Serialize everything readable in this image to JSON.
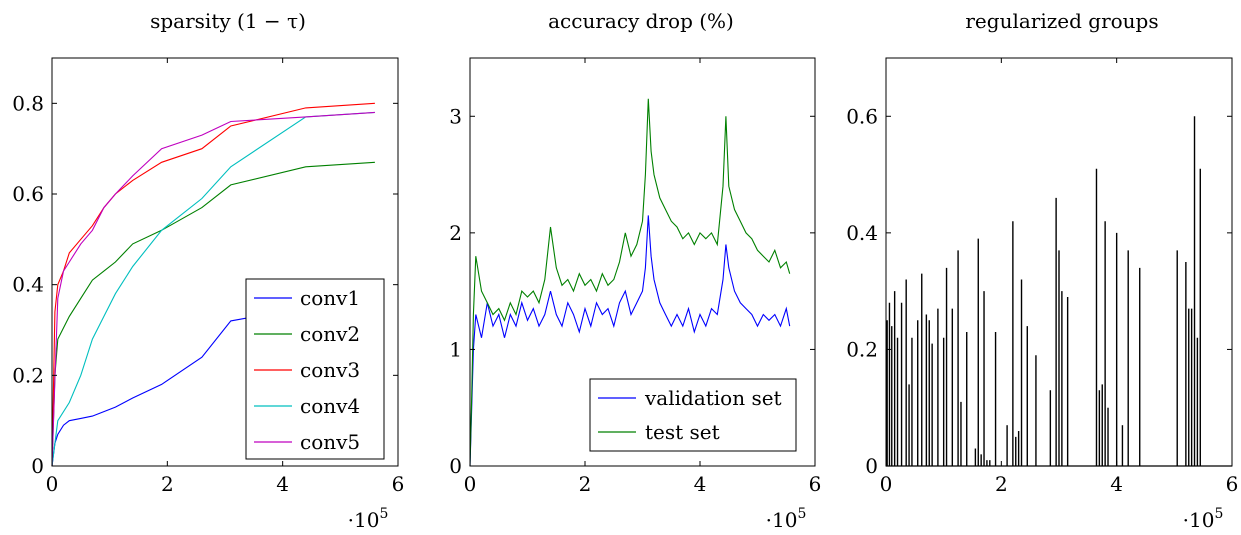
{
  "chart_data": [
    {
      "type": "line",
      "title": "sparsity (1 − τ)",
      "xlabel": "",
      "ylabel": "",
      "xlim": [
        0,
        6
      ],
      "ylim": [
        0,
        0.9
      ],
      "xticks": [
        "0",
        "2",
        "4",
        "6"
      ],
      "yticks": [
        "0",
        "0.2",
        "0.4",
        "0.6",
        "0.8"
      ],
      "x_multiplier": "·10",
      "x_multiplier_exp": "5",
      "legend_position": "bottom-right",
      "series": [
        {
          "name": "conv1",
          "color": "#0000ff",
          "x": [
            0,
            0.05,
            0.1,
            0.2,
            0.3,
            0.5,
            0.7,
            0.9,
            1.1,
            1.4,
            1.9,
            2.6,
            3.1,
            4.4,
            5.6
          ],
          "y": [
            0,
            0.05,
            0.07,
            0.09,
            0.1,
            0.105,
            0.11,
            0.12,
            0.13,
            0.15,
            0.18,
            0.24,
            0.32,
            0.35,
            0.38
          ]
        },
        {
          "name": "conv2",
          "color": "#008000",
          "x": [
            0,
            0.05,
            0.1,
            0.3,
            0.5,
            0.7,
            0.9,
            1.1,
            1.4,
            1.9,
            2.6,
            3.1,
            4.4,
            5.6
          ],
          "y": [
            0,
            0.2,
            0.28,
            0.33,
            0.37,
            0.41,
            0.43,
            0.45,
            0.49,
            0.52,
            0.57,
            0.62,
            0.66,
            0.67
          ]
        },
        {
          "name": "conv3",
          "color": "#ff0000",
          "x": [
            0,
            0.05,
            0.1,
            0.2,
            0.3,
            0.5,
            0.7,
            0.9,
            1.1,
            1.4,
            1.9,
            2.6,
            3.1,
            4.4,
            5.6
          ],
          "y": [
            0,
            0.34,
            0.4,
            0.43,
            0.47,
            0.5,
            0.53,
            0.57,
            0.6,
            0.63,
            0.67,
            0.7,
            0.75,
            0.79,
            0.8
          ]
        },
        {
          "name": "conv4",
          "color": "#00bfbf",
          "x": [
            0,
            0.05,
            0.1,
            0.3,
            0.5,
            0.7,
            0.9,
            1.1,
            1.4,
            1.9,
            2.6,
            3.1,
            4.4,
            5.6
          ],
          "y": [
            0,
            0.05,
            0.1,
            0.14,
            0.2,
            0.28,
            0.33,
            0.38,
            0.44,
            0.52,
            0.59,
            0.66,
            0.77,
            0.78
          ]
        },
        {
          "name": "conv5",
          "color": "#bf00bf",
          "x": [
            0,
            0.05,
            0.1,
            0.2,
            0.3,
            0.5,
            0.7,
            0.9,
            1.1,
            1.4,
            1.9,
            2.6,
            3.1,
            4.4,
            5.6
          ],
          "y": [
            0,
            0.19,
            0.37,
            0.43,
            0.45,
            0.49,
            0.52,
            0.57,
            0.6,
            0.64,
            0.7,
            0.73,
            0.76,
            0.77,
            0.78
          ]
        }
      ]
    },
    {
      "type": "line",
      "title": "accuracy drop (%)",
      "xlabel": "",
      "ylabel": "",
      "xlim": [
        0,
        6
      ],
      "ylim": [
        0,
        3.5
      ],
      "xticks": [
        "0",
        "2",
        "4",
        "6"
      ],
      "yticks": [
        "0",
        "1",
        "2",
        "3"
      ],
      "x_multiplier": "·10",
      "x_multiplier_exp": "5",
      "legend_position": "bottom-right",
      "series": [
        {
          "name": "validation set",
          "color": "#0000ff",
          "x": [
            0,
            0.03,
            0.06,
            0.1,
            0.2,
            0.3,
            0.4,
            0.5,
            0.6,
            0.7,
            0.8,
            0.9,
            1.0,
            1.1,
            1.2,
            1.3,
            1.4,
            1.5,
            1.6,
            1.7,
            1.8,
            1.9,
            2.0,
            2.1,
            2.2,
            2.3,
            2.4,
            2.5,
            2.6,
            2.7,
            2.8,
            2.9,
            3.0,
            3.05,
            3.1,
            3.15,
            3.2,
            3.3,
            3.4,
            3.5,
            3.6,
            3.7,
            3.8,
            3.9,
            4.0,
            4.1,
            4.2,
            4.3,
            4.4,
            4.45,
            4.5,
            4.6,
            4.7,
            4.8,
            4.9,
            5.0,
            5.1,
            5.2,
            5.3,
            5.4,
            5.5,
            5.56
          ],
          "y": [
            0,
            0.5,
            1.0,
            1.3,
            1.1,
            1.4,
            1.2,
            1.3,
            1.1,
            1.3,
            1.2,
            1.4,
            1.25,
            1.35,
            1.2,
            1.3,
            1.5,
            1.3,
            1.2,
            1.4,
            1.3,
            1.15,
            1.35,
            1.2,
            1.4,
            1.3,
            1.35,
            1.2,
            1.4,
            1.5,
            1.3,
            1.4,
            1.5,
            1.7,
            2.15,
            1.8,
            1.6,
            1.4,
            1.3,
            1.2,
            1.3,
            1.2,
            1.35,
            1.15,
            1.3,
            1.2,
            1.35,
            1.3,
            1.6,
            1.9,
            1.7,
            1.5,
            1.4,
            1.35,
            1.3,
            1.2,
            1.3,
            1.25,
            1.3,
            1.2,
            1.35,
            1.2
          ]
        },
        {
          "name": "test set",
          "color": "#008000",
          "x": [
            0,
            0.03,
            0.06,
            0.1,
            0.2,
            0.3,
            0.4,
            0.5,
            0.6,
            0.7,
            0.8,
            0.9,
            1.0,
            1.1,
            1.2,
            1.3,
            1.4,
            1.5,
            1.6,
            1.7,
            1.8,
            1.9,
            2.0,
            2.1,
            2.2,
            2.3,
            2.4,
            2.5,
            2.6,
            2.7,
            2.8,
            2.9,
            3.0,
            3.05,
            3.1,
            3.15,
            3.2,
            3.3,
            3.4,
            3.5,
            3.6,
            3.7,
            3.8,
            3.9,
            4.0,
            4.1,
            4.2,
            4.3,
            4.4,
            4.45,
            4.5,
            4.6,
            4.7,
            4.8,
            4.9,
            5.0,
            5.1,
            5.2,
            5.3,
            5.4,
            5.5,
            5.56
          ],
          "y": [
            0,
            0.6,
            1.3,
            1.8,
            1.5,
            1.4,
            1.3,
            1.35,
            1.25,
            1.4,
            1.3,
            1.5,
            1.45,
            1.5,
            1.4,
            1.6,
            2.05,
            1.7,
            1.55,
            1.6,
            1.5,
            1.65,
            1.55,
            1.6,
            1.5,
            1.65,
            1.55,
            1.6,
            1.75,
            2.0,
            1.8,
            1.9,
            2.1,
            2.5,
            3.15,
            2.7,
            2.5,
            2.3,
            2.2,
            2.1,
            2.05,
            1.95,
            2.0,
            1.9,
            2.0,
            1.95,
            2.0,
            1.9,
            2.4,
            3.0,
            2.4,
            2.2,
            2.1,
            2.0,
            1.95,
            1.85,
            1.8,
            1.75,
            1.85,
            1.7,
            1.75,
            1.65
          ]
        }
      ]
    },
    {
      "type": "bar",
      "title": "regularized groups",
      "xlabel": "",
      "ylabel": "",
      "xlim": [
        0,
        6
      ],
      "ylim": [
        0,
        0.7
      ],
      "xticks": [
        "0",
        "2",
        "4",
        "6"
      ],
      "yticks": [
        "0",
        "0.2",
        "0.4",
        "0.6"
      ],
      "x_multiplier": "·10",
      "x_multiplier_exp": "5",
      "series": [
        {
          "name": "",
          "color": "#000000",
          "x": [
            0.02,
            0.06,
            0.1,
            0.15,
            0.2,
            0.27,
            0.35,
            0.4,
            0.45,
            0.55,
            0.62,
            0.7,
            0.75,
            0.8,
            0.9,
            1.0,
            1.05,
            1.15,
            1.25,
            1.3,
            1.4,
            1.55,
            1.6,
            1.65,
            1.7,
            1.75,
            1.8,
            1.9,
            2.1,
            2.2,
            2.25,
            2.3,
            2.35,
            2.45,
            2.6,
            2.85,
            2.95,
            3.0,
            3.05,
            3.15,
            3.65,
            3.7,
            3.75,
            3.8,
            3.85,
            4.0,
            4.1,
            4.2,
            4.4,
            5.05,
            5.2,
            5.25,
            5.3,
            5.35,
            5.4,
            5.45
          ],
          "y": [
            0.25,
            0.28,
            0.24,
            0.3,
            0.22,
            0.28,
            0.32,
            0.14,
            0.22,
            0.25,
            0.33,
            0.26,
            0.25,
            0.21,
            0.27,
            0.22,
            0.34,
            0.27,
            0.37,
            0.11,
            0.23,
            0.03,
            0.39,
            0.02,
            0.3,
            0.01,
            0.01,
            0.23,
            0.07,
            0.42,
            0.05,
            0.06,
            0.32,
            0.24,
            0.19,
            0.13,
            0.46,
            0.37,
            0.3,
            0.29,
            0.51,
            0.13,
            0.14,
            0.42,
            0.1,
            0.4,
            0.07,
            0.37,
            0.34,
            0.37,
            0.35,
            0.27,
            0.27,
            0.6,
            0.22,
            0.51
          ]
        }
      ]
    }
  ]
}
